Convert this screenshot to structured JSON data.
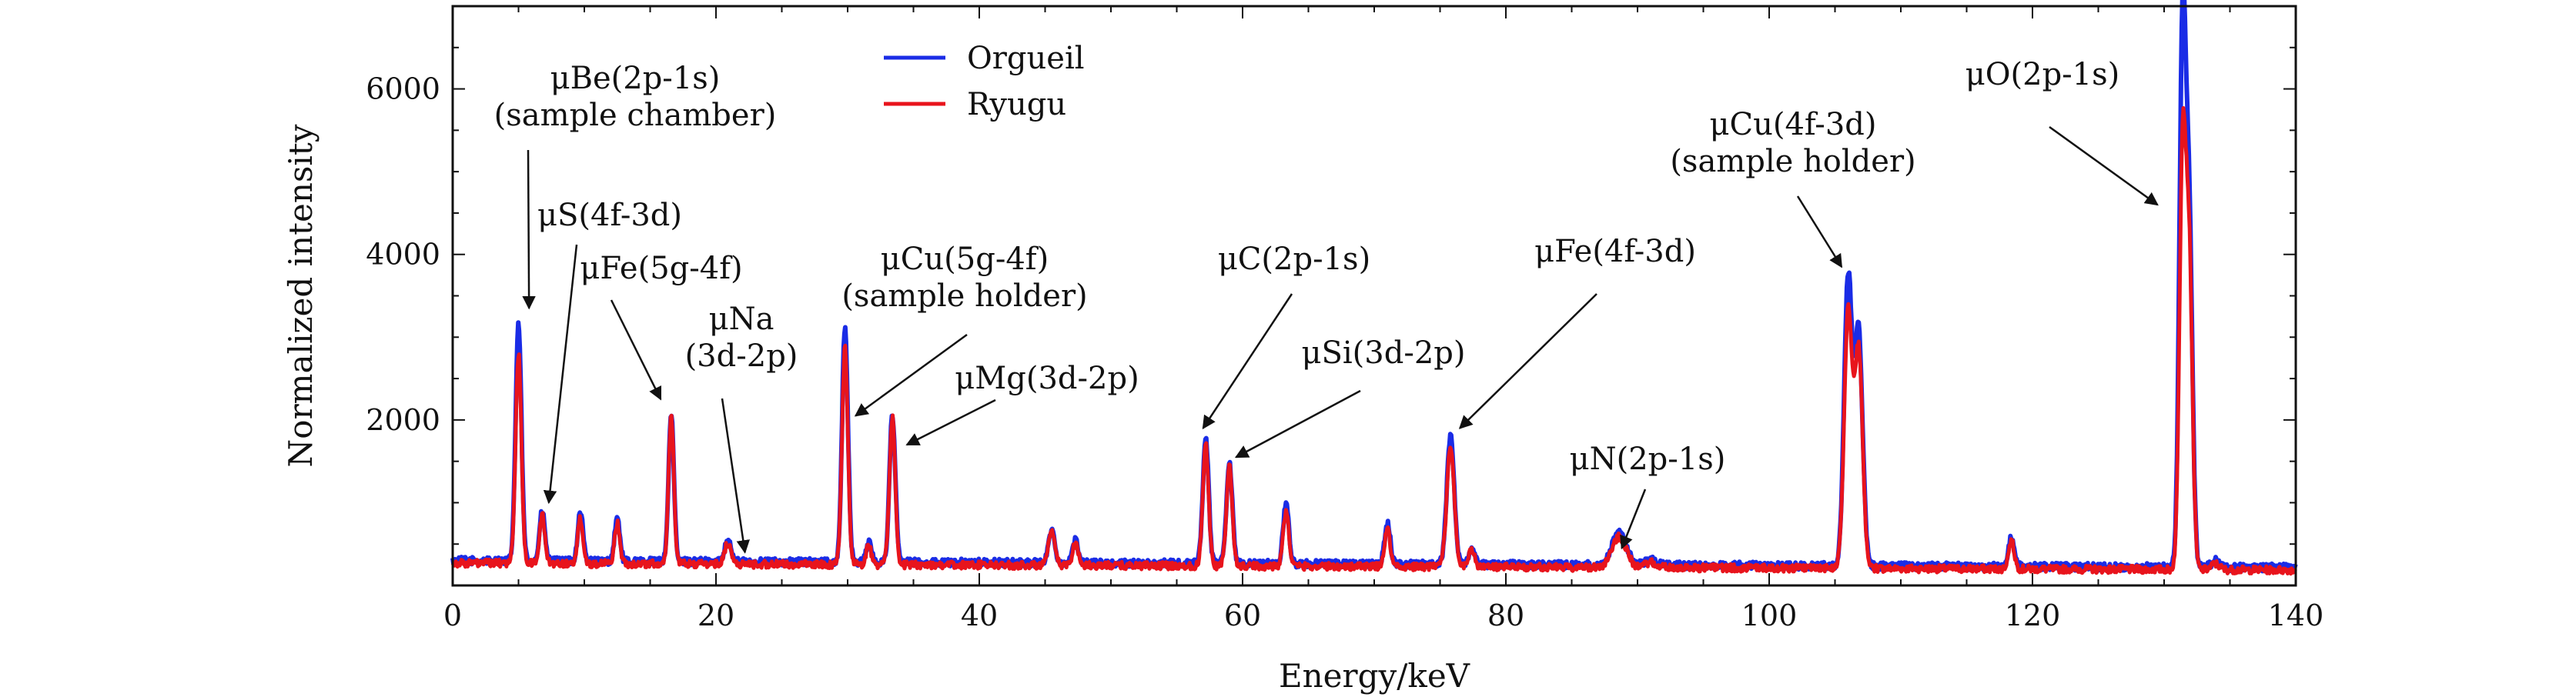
{
  "chart_data": {
    "type": "line",
    "xlabel": "Energy/keV",
    "ylabel": "Normalized intensity",
    "xlim": [
      0,
      140
    ],
    "ylim": [
      0,
      7000
    ],
    "xticks": [
      0,
      20,
      40,
      60,
      80,
      100,
      120,
      140
    ],
    "yticks": [
      2000,
      4000,
      6000
    ],
    "grid": false,
    "legend_position": "top-center",
    "series": [
      {
        "name": "Orgueil",
        "color": "#1a2ce6",
        "baseline": 300,
        "peaks": [
          [
            5,
            3150,
            0.22
          ],
          [
            6.8,
            900,
            0.2
          ],
          [
            9.7,
            900,
            0.2
          ],
          [
            12.5,
            820,
            0.2
          ],
          [
            16.6,
            2070,
            0.2
          ],
          [
            20.9,
            560,
            0.25
          ],
          [
            29.8,
            3150,
            0.22
          ],
          [
            31.6,
            540,
            0.2
          ],
          [
            33.4,
            2080,
            0.22
          ],
          [
            45.5,
            680,
            0.25
          ],
          [
            47.3,
            570,
            0.22
          ],
          [
            57.2,
            1830,
            0.22
          ],
          [
            59.0,
            1500,
            0.22
          ],
          [
            63.3,
            1010,
            0.22
          ],
          [
            71.0,
            790,
            0.22
          ],
          [
            75.8,
            1850,
            0.28
          ],
          [
            77.4,
            510,
            0.22
          ],
          [
            88.6,
            680,
            0.55
          ],
          [
            91.0,
            360,
            0.4
          ],
          [
            106,
            3780,
            0.3
          ],
          [
            106.8,
            3100,
            0.3
          ],
          [
            118.4,
            650,
            0.22
          ],
          [
            131.4,
            6700,
            0.24
          ],
          [
            131.9,
            4400,
            0.25
          ],
          [
            133.9,
            380,
            0.3
          ]
        ]
      },
      {
        "name": "Ryugu",
        "color": "#e8141c",
        "baseline": 270,
        "peaks": [
          [
            5,
            2800,
            0.22
          ],
          [
            6.8,
            850,
            0.2
          ],
          [
            9.7,
            820,
            0.2
          ],
          [
            12.5,
            760,
            0.2
          ],
          [
            16.6,
            2070,
            0.2
          ],
          [
            20.9,
            520,
            0.25
          ],
          [
            29.8,
            2900,
            0.22
          ],
          [
            31.6,
            500,
            0.2
          ],
          [
            33.4,
            2050,
            0.22
          ],
          [
            45.5,
            660,
            0.25
          ],
          [
            47.3,
            540,
            0.22
          ],
          [
            57.2,
            1750,
            0.22
          ],
          [
            59.0,
            1480,
            0.22
          ],
          [
            63.3,
            930,
            0.22
          ],
          [
            71.0,
            720,
            0.22
          ],
          [
            75.8,
            1740,
            0.28
          ],
          [
            77.4,
            480,
            0.22
          ],
          [
            88.6,
            640,
            0.55
          ],
          [
            91.0,
            330,
            0.4
          ],
          [
            106,
            3350,
            0.3
          ],
          [
            106.8,
            2900,
            0.3
          ],
          [
            118.4,
            600,
            0.22
          ],
          [
            131.4,
            5200,
            0.24
          ],
          [
            131.9,
            4000,
            0.25
          ],
          [
            133.9,
            340,
            0.3
          ]
        ]
      }
    ],
    "annotations": [
      {
        "lines": [
          "μBe(2p-1s)",
          "(sample chamber)"
        ],
        "target": [
          5.8,
          3350
        ]
      },
      {
        "lines": [
          "μS(4f-3d)"
        ],
        "target": [
          7.3,
          1000
        ]
      },
      {
        "lines": [
          "μFe(5g-4f)"
        ],
        "target": [
          15.8,
          2250
        ]
      },
      {
        "lines": [
          "μNa",
          "(3d-2p)"
        ],
        "target": [
          22.2,
          400
        ]
      },
      {
        "lines": [
          "μCu(5g-4f)",
          "(sample holder)"
        ],
        "target": [
          30.6,
          2050
        ]
      },
      {
        "lines": [
          "μMg(3d-2p)"
        ],
        "target": [
          34.5,
          1700
        ]
      },
      {
        "lines": [
          "μC(2p-1s)"
        ],
        "target": [
          57.0,
          1900
        ]
      },
      {
        "lines": [
          "μSi(3d-2p)"
        ],
        "target": [
          59.5,
          1550
        ]
      },
      {
        "lines": [
          "μFe(4f-3d)"
        ],
        "target": [
          76.5,
          1900
        ]
      },
      {
        "lines": [
          "μN(2p-1s)"
        ],
        "target": [
          88.8,
          450
        ]
      },
      {
        "lines": [
          "μCu(4f-3d)",
          "(sample holder)"
        ],
        "target": [
          105.5,
          3850
        ]
      },
      {
        "lines": [
          "μO(2p-1s)"
        ],
        "target": [
          129.5,
          4600
        ]
      }
    ]
  }
}
